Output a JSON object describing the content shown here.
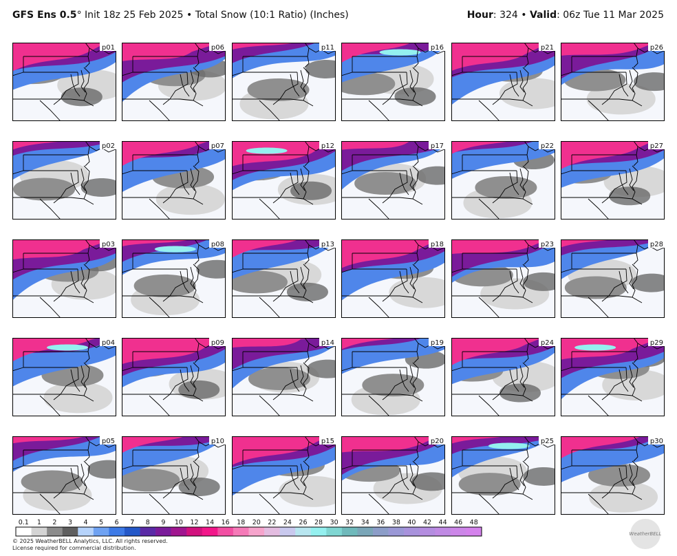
{
  "header": {
    "title_bold": "GFS Ens 0.5",
    "title_rest": "° Init 18z 25 Feb 2025 • Total Snow (10:1 Ratio) (Inches)",
    "right": [
      "Hour",
      ": 324 • ",
      "Valid",
      ": 06z Tue 11 Mar 2025"
    ]
  },
  "panels": [
    "p01",
    "p06",
    "p11",
    "p16",
    "p21",
    "p26",
    "p02",
    "p07",
    "p12",
    "p17",
    "p22",
    "p27",
    "p03",
    "p08",
    "p13",
    "p18",
    "p23",
    "p28",
    "p04",
    "p09",
    "p14",
    "p19",
    "p24",
    "p29",
    "p05",
    "p10",
    "p15",
    "p20",
    "p25",
    "p30"
  ],
  "colorbar": {
    "ticks": [
      0.1,
      1,
      2,
      3,
      4,
      5,
      6,
      7,
      8,
      9,
      10,
      12,
      14,
      16,
      18,
      20,
      22,
      24,
      26,
      28,
      30,
      32,
      34,
      36,
      38,
      40,
      42,
      44,
      46,
      48
    ],
    "colors": [
      "#ffffff",
      "#d4d4d4",
      "#8c8c8c",
      "#5f5f5f",
      "#b6d3fb",
      "#6fa2f2",
      "#3d7ae6",
      "#2458c8",
      "#5a2aa6",
      "#7a1b9a",
      "#a0168f",
      "#d1127e",
      "#f2178a",
      "#f24fa3",
      "#f57ab8",
      "#f6a4cc",
      "#e3bce0",
      "#c9c9ee",
      "#b8e6f0",
      "#94f0ef",
      "#7fd6d2",
      "#6fb9bb",
      "#7aa6b8",
      "#8c9dc8",
      "#9a98d6",
      "#a892dc",
      "#b48de0",
      "#c08ae4",
      "#cc86e8",
      "#d482ec"
    ]
  },
  "footer": [
    "© 2025 WeatherBELL Analytics, LLC. All rights reserved.",
    "License required for commercial distribution."
  ],
  "logo": "WeatherBELL"
}
